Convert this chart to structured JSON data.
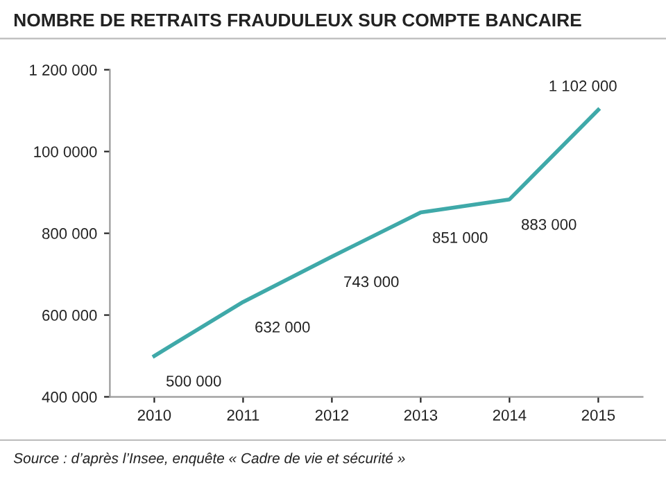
{
  "chart_data": {
    "type": "line",
    "title": "NOMBRE DE RETRAITS FRAUDULEUX SUR COMPTE BANCAIRE",
    "categories": [
      "2010",
      "2011",
      "2012",
      "2013",
      "2014",
      "2015"
    ],
    "series": [
      {
        "color": "#3fa9a9",
        "values": [
          500000,
          632000,
          743000,
          851000,
          883000,
          1102000
        ],
        "value_labels": [
          "500 000",
          "632 000",
          "743 000",
          "851 000",
          "883 000",
          "1 102 000"
        ]
      }
    ],
    "ylim": [
      400000,
      1200000
    ],
    "yticks": [
      {
        "value": 400000,
        "label": "400 000"
      },
      {
        "value": 600000,
        "label": "600 000"
      },
      {
        "value": 800000,
        "label": "800 000"
      },
      {
        "value": 1000000,
        "label": "100 0000"
      },
      {
        "value": 1200000,
        "label": "1 200 000"
      }
    ],
    "grid": false,
    "marker": "none",
    "line_style": "solid",
    "annotations": [
      "Source : d’après l’Insee, enquête « Cadre de vie et sécurité »"
    ]
  }
}
